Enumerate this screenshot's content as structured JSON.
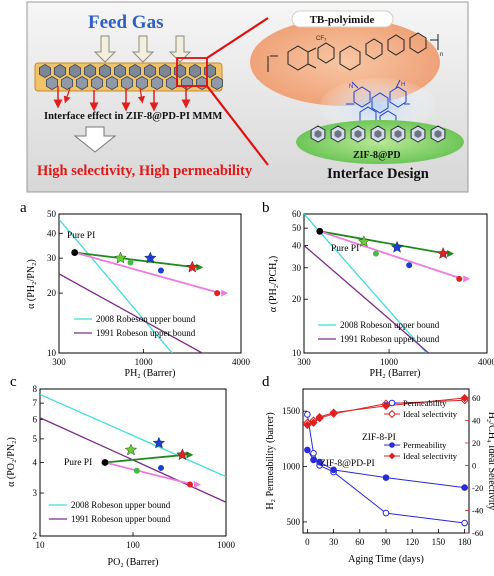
{
  "figure": {
    "toc": {
      "feed_gas": "Feed Gas",
      "polymer_label": "TB-polyimide",
      "interface_text": "Interface effect in ZIF-8@PD-PI MMM",
      "result_text": "High selectivity, High permeability",
      "design_text": "Interface Design",
      "zif_label": "ZIF-8@PD",
      "group_cf3": "CF₃",
      "subscript_n": "n",
      "atom_n": "N",
      "atom_h": "H"
    },
    "panels": {
      "a": {
        "letter": "a",
        "pure_label": "Pure PI",
        "ylabel": "α (PH₂/PN₂)",
        "xlabel": "PH₂ (Barrer)",
        "legend_2008": "2008 Robeson upper bound",
        "legend_1991": "1991 Robeson upper bound"
      },
      "b": {
        "letter": "b",
        "pure_label": "Pure PI",
        "ylabel": "α (PH₂/PCH₄)",
        "xlabel": "PH₂ (Barrer)",
        "legend_2008": "2008 Robeson upper bound",
        "legend_1991": "1991 Robeson upper bound"
      },
      "c": {
        "letter": "c",
        "pure_label": "Pure PI",
        "ylabel": "α (PO₂/PN₂)",
        "xlabel": "PO₂ (Barrer)",
        "legend_2008": "2008 Robeson upper bound",
        "legend_1991": "1991 Robeson upper bound"
      },
      "d": {
        "letter": "d",
        "zif8_pi_label": "ZIF-8-PI",
        "zif8_pd_pi_label": "ZIF-8@PD-PI",
        "legend_perm": "Permeability",
        "legend_sel": "Ideal selectivity",
        "ylabel_left": "H₂ Permeability (barrer)",
        "ylabel_right": "H₂/CH₄ Ideal Selectivity",
        "xlabel": "Aging Time (days)"
      }
    }
  },
  "chart_data": [
    {
      "type": "scatter",
      "panel": "a",
      "log_x": true,
      "log_y": true,
      "xlim": [
        300,
        4000
      ],
      "ylim": [
        10,
        50
      ],
      "x_ticks": [
        "300",
        "1000",
        "4000"
      ],
      "y_ticks": [
        "10",
        "20",
        "30",
        "40",
        "50"
      ],
      "bounds": {
        "robeson_2008": [
          [
            300,
            47
          ],
          [
            1500,
            10
          ]
        ],
        "robeson_1991": [
          [
            300,
            25
          ],
          [
            2300,
            10
          ]
        ]
      },
      "points": [
        {
          "marker": "circle",
          "color": "#000000",
          "x": 375,
          "y": 32
        },
        {
          "marker": "star",
          "color": "#66cc33",
          "x": 720,
          "y": 30
        },
        {
          "marker": "circle",
          "color": "#44bb44",
          "x": 830,
          "y": 28.5
        },
        {
          "marker": "star",
          "color": "#1a3fd6",
          "x": 1100,
          "y": 30
        },
        {
          "marker": "circle",
          "color": "#1a3fd6",
          "x": 1280,
          "y": 26
        },
        {
          "marker": "star",
          "color": "#dd2222",
          "x": 2000,
          "y": 27
        },
        {
          "marker": "circle",
          "color": "#dd2222",
          "x": 2850,
          "y": 20
        }
      ]
    },
    {
      "type": "scatter",
      "panel": "b",
      "log_x": true,
      "log_y": true,
      "xlim": [
        300,
        4000
      ],
      "ylim": [
        10,
        60
      ],
      "x_ticks": [
        "300",
        "1000",
        "4000"
      ],
      "y_ticks": [
        "10",
        "20",
        "30",
        "40",
        "50",
        "60"
      ],
      "bounds": {
        "robeson_2008": [
          [
            300,
            60
          ],
          [
            1700,
            10
          ]
        ],
        "robeson_1991": [
          [
            300,
            40
          ],
          [
            1750,
            10
          ]
        ]
      },
      "points": [
        {
          "marker": "circle",
          "color": "#000000",
          "x": 375,
          "y": 48
        },
        {
          "marker": "star",
          "color": "#66cc33",
          "x": 700,
          "y": 42
        },
        {
          "marker": "circle",
          "color": "#44bb44",
          "x": 830,
          "y": 36
        },
        {
          "marker": "star",
          "color": "#1a3fd6",
          "x": 1120,
          "y": 39
        },
        {
          "marker": "circle",
          "color": "#1a3fd6",
          "x": 1330,
          "y": 31
        },
        {
          "marker": "star",
          "color": "#dd2222",
          "x": 2150,
          "y": 36
        },
        {
          "marker": "circle",
          "color": "#dd2222",
          "x": 2700,
          "y": 26
        }
      ]
    },
    {
      "type": "scatter",
      "panel": "c",
      "log_x": true,
      "log_y": true,
      "xlim": [
        10,
        1000
      ],
      "ylim": [
        2,
        8
      ],
      "x_ticks": [
        "10",
        "100",
        "1000"
      ],
      "y_ticks": [
        "2",
        "3",
        "4",
        "5",
        "6",
        "7",
        "8"
      ],
      "bounds": {
        "robeson_2008": [
          [
            10,
            7.6
          ],
          [
            1000,
            3.5
          ]
        ],
        "robeson_1991": [
          [
            10,
            6.1
          ],
          [
            1000,
            2.75
          ]
        ]
      },
      "points": [
        {
          "marker": "circle",
          "color": "#000000",
          "x": 50,
          "y": 4.0
        },
        {
          "marker": "star",
          "color": "#66cc33",
          "x": 95,
          "y": 4.5
        },
        {
          "marker": "circle",
          "color": "#44bb44",
          "x": 110,
          "y": 3.7
        },
        {
          "marker": "star",
          "color": "#1a3fd6",
          "x": 190,
          "y": 4.8
        },
        {
          "marker": "circle",
          "color": "#1a3fd6",
          "x": 200,
          "y": 3.8
        },
        {
          "marker": "star",
          "color": "#dd2222",
          "x": 340,
          "y": 4.3
        },
        {
          "marker": "circle",
          "color": "#dd2222",
          "x": 410,
          "y": 3.25
        }
      ]
    },
    {
      "type": "line",
      "panel": "d",
      "xlim": [
        -5,
        185
      ],
      "ylim": [
        400,
        1700
      ],
      "y2lim": [
        -60,
        68
      ],
      "x_ticks": [
        "0",
        "30",
        "60",
        "90",
        "120",
        "150",
        "180"
      ],
      "y_ticks": [
        "500",
        "1000",
        "1500"
      ],
      "y2_ticks": [
        "-60",
        "-40",
        "-20",
        "0",
        "20",
        "40",
        "60"
      ],
      "x": [
        0,
        7,
        14,
        30,
        90,
        180
      ],
      "series": [
        {
          "name": "Permeability",
          "axis": "left",
          "filled": false,
          "color": "#2a2ad8",
          "values": [
            1470,
            1120,
            1010,
            950,
            580,
            490
          ]
        },
        {
          "name": "Permeability",
          "axis": "left",
          "filled": true,
          "color": "#2a2ad8",
          "values": [
            1150,
            1060,
            1040,
            970,
            900,
            810
          ]
        },
        {
          "name": "Ideal selectivity",
          "axis": "right",
          "filled": false,
          "color": "#e02020",
          "values": [
            38,
            40,
            42,
            46,
            55,
            58
          ]
        },
        {
          "name": "Ideal selectivity",
          "axis": "right",
          "filled": true,
          "color": "#e02020",
          "values": [
            36,
            38,
            43,
            47,
            53,
            60
          ]
        }
      ]
    }
  ]
}
